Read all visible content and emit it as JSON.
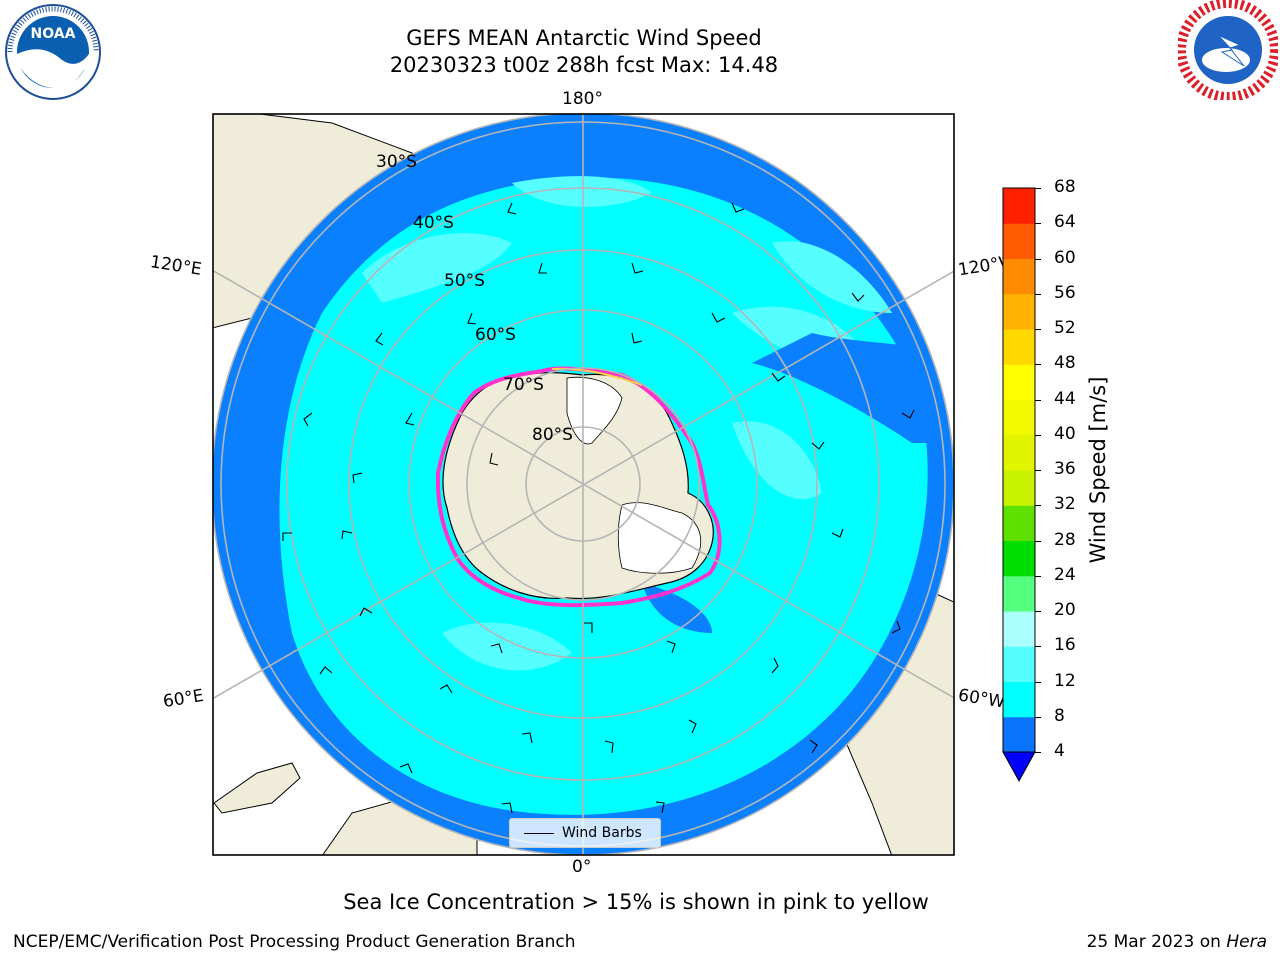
{
  "title": {
    "line1": "GEFS MEAN Antarctic Wind Speed",
    "line2": "20230323 t00z 288h fcst   Max: 14.48"
  },
  "map": {
    "lon_labels": {
      "top": "180°",
      "bottom": "0°",
      "upper_left": "120°E",
      "upper_right": "120°W",
      "lower_left": "60°E",
      "lower_right": "60°W"
    },
    "lat_labels": [
      "30°S",
      "40°S",
      "50°S",
      "60°S",
      "70°S",
      "80°S"
    ],
    "legend_label": "Wind Barbs",
    "colors": {
      "ocean_4_8": "#0a80ff",
      "ocean_8_12": "#00ffff",
      "ocean_12_16": "#55ffff",
      "land": "#efecd9",
      "ice_edge": "#ff33cc",
      "grid": "#b5b5b5"
    }
  },
  "colorbar": {
    "label": "Wind Speed [m/s]",
    "ticks": [
      "4",
      "8",
      "12",
      "16",
      "20",
      "24",
      "28",
      "32",
      "36",
      "40",
      "44",
      "48",
      "52",
      "56",
      "60",
      "64",
      "68"
    ],
    "colors": [
      "#0a74ff",
      "#00ffff",
      "#55ffff",
      "#aaffff",
      "#55ff7f",
      "#00dd00",
      "#5ee000",
      "#c8f200",
      "#e2f500",
      "#f2fa00",
      "#ffff00",
      "#ffd800",
      "#ffb300",
      "#ff8c00",
      "#ff5a00",
      "#ff2000"
    ],
    "extend_color": "#0000ff"
  },
  "note": "Sea Ice Concentration > 15% is shown in pink to yellow",
  "footer": {
    "left": "NCEP/EMC/Verification Post Processing Product Generation Branch",
    "date": "25 Mar 2023 on ",
    "machine": "Hera"
  },
  "logos": {
    "noaa_text": "NOAA",
    "nws_text": "NATIONAL WEATHER SERVICE"
  }
}
